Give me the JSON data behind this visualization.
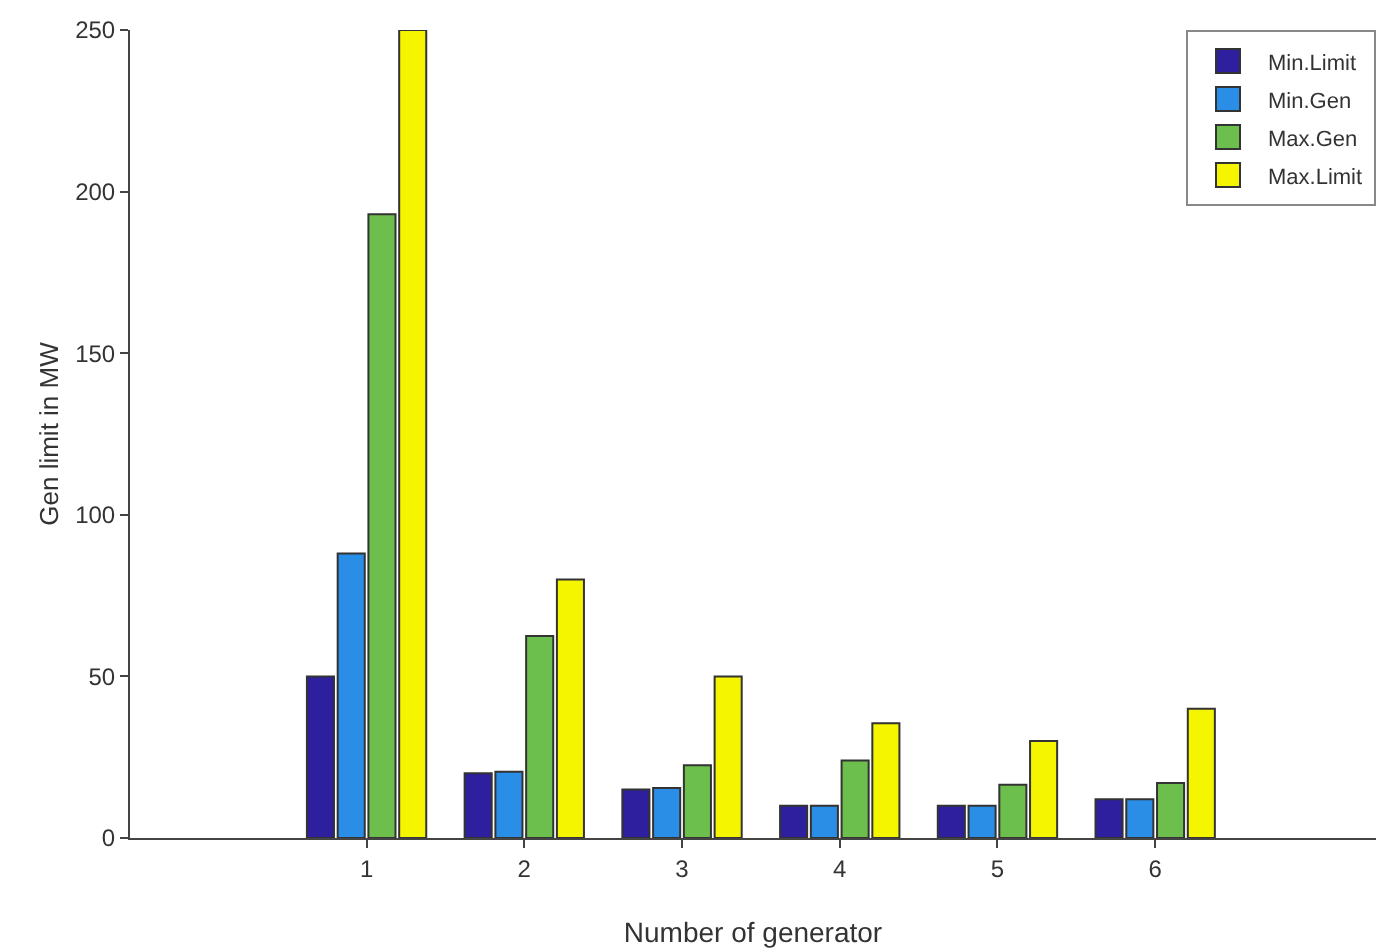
{
  "chart_data": {
    "type": "bar",
    "xlabel": "Number of generator",
    "ylabel": "Gen limit in MW",
    "categories": [
      "1",
      "2",
      "3",
      "4",
      "5",
      "6"
    ],
    "series": [
      {
        "name": "Min.Limit",
        "color": "#2e1f9e",
        "values": [
          50,
          20,
          15,
          10,
          10,
          12
        ]
      },
      {
        "name": "Min.Gen",
        "color": "#2b8ee6",
        "values": [
          88,
          20.5,
          15.5,
          10,
          10,
          12
        ]
      },
      {
        "name": "Max.Gen",
        "color": "#6cbf4c",
        "values": [
          193,
          62.5,
          22.5,
          24,
          16.5,
          17
        ]
      },
      {
        "name": "Max.Limit",
        "color": "#f5f500",
        "values": [
          250,
          80,
          50,
          35.5,
          30,
          40
        ]
      }
    ],
    "ylim": [
      0,
      250
    ],
    "yticks": [
      0,
      50,
      100,
      150,
      200,
      250
    ],
    "grid": false,
    "legend": "top right"
  }
}
